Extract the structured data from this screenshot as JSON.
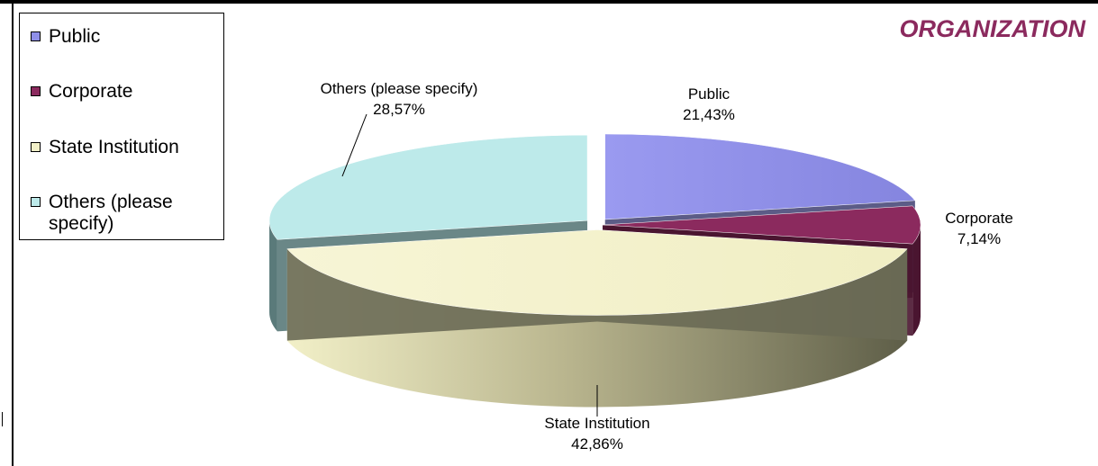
{
  "chart_data": {
    "type": "pie",
    "title": "ORGANIZATION",
    "categories": [
      "Public",
      "Corporate",
      "State Institution",
      "Others (please specify)"
    ],
    "values": [
      21.43,
      7.14,
      42.86,
      28.57
    ],
    "value_labels": [
      "21,43%",
      "7,14%",
      "42,86%",
      "28,57%"
    ],
    "colors": [
      "#8f8fe8",
      "#8b2a5e",
      "#f2f0c8",
      "#bdeaea"
    ],
    "side_colors": [
      "#4a4a7a",
      "#4a1530",
      "#6a6a55",
      "#5a7a7a"
    ],
    "legend": {
      "position": "top-left",
      "items": [
        {
          "label_lines": [
            "Public"
          ]
        },
        {
          "label_lines": [
            "Corporate"
          ]
        },
        {
          "label_lines": [
            "State Institution"
          ]
        },
        {
          "label_lines": [
            "Others (please",
            "specify)"
          ]
        }
      ]
    },
    "three_d": true,
    "exploded": true
  }
}
